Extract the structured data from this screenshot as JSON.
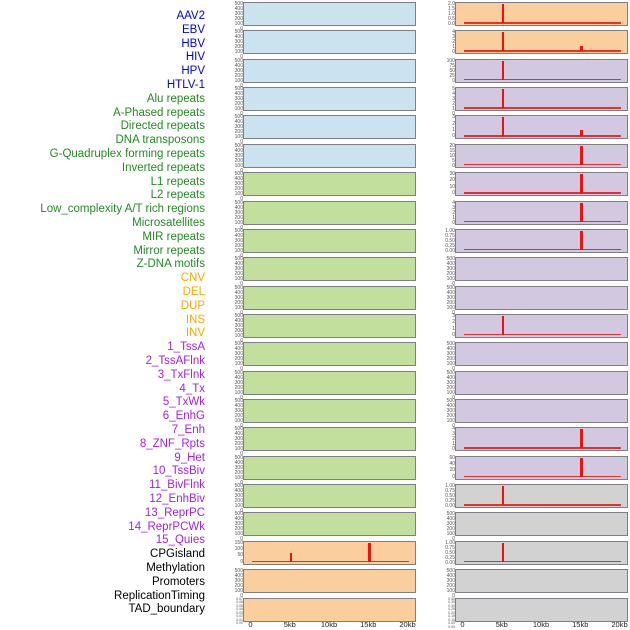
{
  "chart_data": {
    "type": "bar",
    "layout": "small-multiples-2-columns",
    "title": "",
    "xlabel": "",
    "x_ticks": [
      "0",
      "5kb",
      "10kb",
      "15kb",
      "20kb"
    ],
    "x_range_kb": [
      0,
      20
    ],
    "columns": {
      "left_panel_indices": "0-21",
      "right_panel_indices": "22-43"
    },
    "group_colors": {
      "virus": {
        "label": "#0000EE",
        "fill": "#CBE3EE"
      },
      "repeat": {
        "label": "#228B22",
        "fill": "#C3DF9E"
      },
      "sv": {
        "label": "#FFA500",
        "fill": "#FBCE9D"
      },
      "chromhmm": {
        "label": "#A020F0",
        "fill": "#D2C8E0"
      },
      "other": {
        "label": "#000000",
        "fill": "#D2D2D2"
      }
    },
    "spike_color": "#EE1111",
    "panels": [
      {
        "label": "AAV2",
        "group": "virus",
        "yticks": [
          "500",
          "400",
          "300",
          "200",
          "100",
          "0"
        ],
        "bars": []
      },
      {
        "label": "EBV",
        "group": "virus",
        "yticks": [
          "500",
          "400",
          "300",
          "200",
          "100",
          "0"
        ],
        "bars": []
      },
      {
        "label": "HBV",
        "group": "virus",
        "yticks": [
          "500",
          "400",
          "300",
          "200",
          "100",
          "0"
        ],
        "bars": []
      },
      {
        "label": "HIV",
        "group": "virus",
        "yticks": [
          "500",
          "400",
          "300",
          "200",
          "100",
          "0"
        ],
        "bars": []
      },
      {
        "label": "HPV",
        "group": "virus",
        "yticks": [
          "500",
          "400",
          "300",
          "200",
          "100",
          "0"
        ],
        "bars": []
      },
      {
        "label": "HTLV-1",
        "group": "virus",
        "yticks": [
          "500",
          "400",
          "300",
          "200",
          "100",
          "0"
        ],
        "bars": []
      },
      {
        "label": "Alu repeats",
        "group": "repeat",
        "yticks": [
          "500",
          "400",
          "300",
          "200",
          "100",
          "0"
        ],
        "bars": []
      },
      {
        "label": "A-Phased repeats",
        "group": "repeat",
        "yticks": [
          "500",
          "400",
          "300",
          "200",
          "100",
          "0"
        ],
        "bars": []
      },
      {
        "label": "Directed repeats",
        "group": "repeat",
        "yticks": [
          "500",
          "400",
          "300",
          "200",
          "100",
          "0"
        ],
        "bars": []
      },
      {
        "label": "DNA transposons",
        "group": "repeat",
        "yticks": [
          "500",
          "400",
          "300",
          "200",
          "100",
          "0"
        ],
        "bars": []
      },
      {
        "label": "G-Quadruplex forming repeats",
        "group": "repeat",
        "yticks": [
          "500",
          "400",
          "300",
          "200",
          "100",
          "0"
        ],
        "bars": []
      },
      {
        "label": "Inverted repeats",
        "group": "repeat",
        "yticks": [
          "500",
          "400",
          "300",
          "200",
          "100",
          "0"
        ],
        "bars": []
      },
      {
        "label": "L1 repeats",
        "group": "repeat",
        "yticks": [
          "500",
          "400",
          "300",
          "200",
          "100",
          "0"
        ],
        "bars": []
      },
      {
        "label": "L2 repeats",
        "group": "repeat",
        "yticks": [
          "500",
          "400",
          "300",
          "200",
          "100",
          "0"
        ],
        "bars": []
      },
      {
        "label": "Low_complexity A/T rich regions",
        "group": "repeat",
        "yticks": [
          "500",
          "400",
          "300",
          "200",
          "100",
          "0"
        ],
        "bars": []
      },
      {
        "label": "Microsatellites",
        "group": "repeat",
        "yticks": [
          "500",
          "400",
          "300",
          "200",
          "100",
          "0"
        ],
        "bars": []
      },
      {
        "label": "MIR repeats",
        "group": "repeat",
        "yticks": [
          "500",
          "400",
          "300",
          "200",
          "100",
          "0"
        ],
        "bars": []
      },
      {
        "label": "Mirror repeats",
        "group": "repeat",
        "yticks": [
          "500",
          "400",
          "300",
          "200",
          "100",
          "0"
        ],
        "bars": []
      },
      {
        "label": "Z-DNA motifs",
        "group": "repeat",
        "yticks": [
          "500",
          "400",
          "300",
          "200",
          "100",
          "0"
        ],
        "bars": []
      },
      {
        "label": "CNV",
        "group": "sv",
        "yticks": [
          "150",
          "100",
          "50",
          "0"
        ],
        "bars": [
          {
            "x_kb": 5,
            "y": 70
          },
          {
            "x_kb": 15,
            "y": 150
          }
        ]
      },
      {
        "label": "DEL",
        "group": "sv",
        "yticks": [
          "500",
          "400",
          "300",
          "200",
          "100",
          "0"
        ],
        "bars": []
      },
      {
        "label": "DUP",
        "group": "sv",
        "yticks": [
          "0.07",
          "0.06",
          "0.05",
          "0.04",
          "0.03",
          "0.02",
          "0.01",
          "0.00"
        ],
        "bars": []
      },
      {
        "label": "INS",
        "group": "sv",
        "yticks": [
          "2.0",
          "1.5",
          "1.0",
          "0.5",
          "0.0"
        ],
        "bars": [
          {
            "x_kb": 5,
            "y": 2.0
          }
        ]
      },
      {
        "label": "INV",
        "group": "sv",
        "yticks": [
          "4",
          "3",
          "2",
          "1",
          "0"
        ],
        "bars": [
          {
            "x_kb": 5,
            "y": 4
          },
          {
            "x_kb": 15,
            "y": 1.2
          }
        ]
      },
      {
        "label": "1_TssA",
        "group": "chromhmm",
        "yticks": [
          "100",
          "75",
          "50",
          "25",
          "0"
        ],
        "bars": [
          {
            "x_kb": 5,
            "y": 100
          }
        ]
      },
      {
        "label": "2_TssAFlnk",
        "group": "chromhmm",
        "yticks": [
          "5",
          "4",
          "3",
          "2",
          "1",
          "0"
        ],
        "bars": [
          {
            "x_kb": 5,
            "y": 5
          }
        ]
      },
      {
        "label": "3_TxFlnk",
        "group": "chromhmm",
        "yticks": [
          "3",
          "2",
          "1",
          "0"
        ],
        "bars": [
          {
            "x_kb": 5,
            "y": 3
          },
          {
            "x_kb": 15,
            "y": 1
          }
        ]
      },
      {
        "label": "4_Tx",
        "group": "chromhmm",
        "yticks": [
          "20",
          "15",
          "10",
          "5",
          "0"
        ],
        "bars": [
          {
            "x_kb": 15,
            "y": 20
          }
        ]
      },
      {
        "label": "5_TxWk",
        "group": "chromhmm",
        "yticks": [
          "30",
          "20",
          "10",
          "0"
        ],
        "bars": [
          {
            "x_kb": 15,
            "y": 30
          }
        ]
      },
      {
        "label": "6_EnhG",
        "group": "chromhmm",
        "yticks": [
          "4",
          "3",
          "2",
          "1",
          "0"
        ],
        "bars": [
          {
            "x_kb": 15,
            "y": 4
          }
        ]
      },
      {
        "label": "7_Enh",
        "group": "chromhmm",
        "yticks": [
          "1.00",
          "0.75",
          "0.50",
          "0.25",
          "0.00"
        ],
        "bars": [
          {
            "x_kb": 15,
            "y": 1.0
          }
        ]
      },
      {
        "label": "8_ZNF_Rpts",
        "group": "chromhmm",
        "yticks": [
          "500",
          "400",
          "300",
          "200",
          "100",
          "0"
        ],
        "bars": []
      },
      {
        "label": "9_Het",
        "group": "chromhmm",
        "yticks": [
          "500",
          "400",
          "300",
          "200",
          "100",
          "0"
        ],
        "bars": []
      },
      {
        "label": "10_TssBiv",
        "group": "chromhmm",
        "yticks": [
          "3",
          "2",
          "1",
          "0"
        ],
        "bars": [
          {
            "x_kb": 5,
            "y": 3
          }
        ]
      },
      {
        "label": "11_BivFlnk",
        "group": "chromhmm",
        "yticks": [
          "500",
          "400",
          "300",
          "200",
          "100",
          "0"
        ],
        "bars": []
      },
      {
        "label": "12_EnhBiv",
        "group": "chromhmm",
        "yticks": [
          "500",
          "400",
          "300",
          "200",
          "100",
          "0"
        ],
        "bars": []
      },
      {
        "label": "13_ReprPC",
        "group": "chromhmm",
        "yticks": [
          "500",
          "400",
          "300",
          "200",
          "100",
          "0"
        ],
        "bars": []
      },
      {
        "label": "14_ReprPCWk",
        "group": "chromhmm",
        "yticks": [
          "4",
          "3",
          "2",
          "1",
          "0"
        ],
        "bars": [
          {
            "x_kb": 15,
            "y": 4
          }
        ]
      },
      {
        "label": "15_Quies",
        "group": "chromhmm",
        "yticks": [
          "60",
          "40",
          "20",
          "0"
        ],
        "bars": [
          {
            "x_kb": 15,
            "y": 60
          }
        ]
      },
      {
        "label": "CPGisland",
        "group": "other",
        "yticks": [
          "1.00",
          "0.75",
          "0.50",
          "0.25",
          "0.00"
        ],
        "bars": [
          {
            "x_kb": 5,
            "y": 1.0
          }
        ]
      },
      {
        "label": "Methylation",
        "group": "other",
        "yticks": [
          "500",
          "400",
          "300",
          "200",
          "100",
          "0"
        ],
        "bars": []
      },
      {
        "label": "Promoters",
        "group": "other",
        "yticks": [
          "1.00",
          "0.75",
          "0.50",
          "0.25",
          "0.00"
        ],
        "bars": [
          {
            "x_kb": 5,
            "y": 1.0
          }
        ]
      },
      {
        "label": "ReplicationTiming",
        "group": "other",
        "yticks": [
          "500",
          "400",
          "300",
          "200",
          "100",
          "0"
        ],
        "bars": []
      },
      {
        "label": "TAD_boundary",
        "group": "other",
        "yticks": [
          "0.40",
          "0.35",
          "0.30",
          "0.25",
          "0.20",
          "0.15",
          "0.10",
          "0.05",
          "0.00"
        ],
        "bars": []
      }
    ]
  }
}
